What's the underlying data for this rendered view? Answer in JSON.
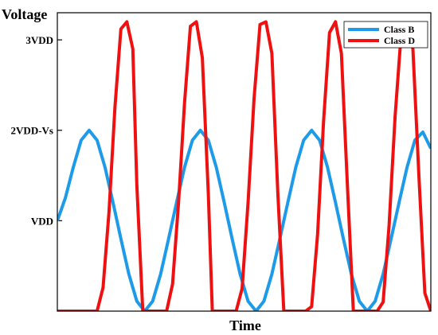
{
  "chart_data": {
    "type": "line",
    "title": "",
    "xlabel": "Time",
    "ylabel": "Voltage",
    "ylim": [
      0,
      3.3
    ],
    "xlim": [
      0,
      9.4
    ],
    "grid": false,
    "legend_position": "top-right",
    "y_ticks": [
      {
        "value": 1,
        "label": "VDD"
      },
      {
        "value": 2,
        "label": "2VDD-Vs"
      },
      {
        "value": 3,
        "label": "3VDD"
      }
    ],
    "series": [
      {
        "name": "Class B",
        "color": "#1e9be8",
        "x": [
          0,
          0.2,
          0.4,
          0.6,
          0.8,
          1,
          1.2,
          1.4,
          1.6,
          1.8,
          2,
          2.2,
          2.4,
          2.6,
          2.8,
          3,
          3.2,
          3.4,
          3.6,
          3.8,
          4,
          4.2,
          4.4,
          4.6,
          4.8,
          5,
          5.2,
          5.4,
          5.6,
          5.8,
          6,
          6.2,
          6.4,
          6.6,
          6.8,
          7,
          7.2,
          7.4,
          7.6,
          7.8,
          8,
          8.2,
          8.4,
          8.6,
          8.8,
          9,
          9.2,
          9.4
        ],
        "values": [
          1,
          1.25,
          1.59,
          1.89,
          2.0,
          1.89,
          1.59,
          1.2,
          0.8,
          0.41,
          0.11,
          0,
          0.11,
          0.41,
          0.8,
          1.2,
          1.59,
          1.89,
          2.0,
          1.89,
          1.59,
          1.2,
          0.8,
          0.41,
          0.11,
          0,
          0.11,
          0.41,
          0.8,
          1.2,
          1.59,
          1.89,
          2.0,
          1.89,
          1.59,
          1.2,
          0.8,
          0.41,
          0.11,
          0,
          0.11,
          0.41,
          0.8,
          1.2,
          1.59,
          1.89,
          1.98,
          1.8
        ]
      },
      {
        "name": "Class D",
        "color": "#ee1111",
        "x": [
          0,
          1,
          1.15,
          1.3,
          1.45,
          1.6,
          1.75,
          1.9,
          2.0,
          2.15,
          2.3,
          2.45,
          2.6,
          2.75,
          2.9,
          3.05,
          3.2,
          3.35,
          3.5,
          3.65,
          3.8,
          3.9,
          4.05,
          4.2,
          4.35,
          4.5,
          4.65,
          4.8,
          4.95,
          5.1,
          5.25,
          5.4,
          5.55,
          5.7,
          5.8,
          5.95,
          6.1,
          6.25,
          6.4,
          6.55,
          6.7,
          6.85,
          7.0,
          7.15,
          7.3,
          7.45,
          7.6,
          7.75,
          7.9,
          8.05,
          8.2,
          8.35,
          8.5,
          8.65,
          8.8,
          8.95,
          9.1,
          9.25,
          9.4
        ],
        "values": [
          0,
          0,
          0.26,
          1.1,
          2.25,
          3.12,
          3.2,
          2.9,
          1.4,
          0,
          0,
          0,
          0,
          0,
          0.3,
          1.2,
          2.3,
          3.15,
          3.2,
          2.8,
          1.3,
          0,
          0,
          0,
          0,
          0,
          0.25,
          1.2,
          2.35,
          3.17,
          3.2,
          2.85,
          1.3,
          0,
          0,
          0,
          0,
          0,
          0.05,
          0.85,
          2.1,
          3.08,
          3.2,
          2.85,
          1.4,
          0,
          0,
          0,
          0,
          0,
          0.1,
          0.95,
          2.15,
          3.05,
          3.17,
          2.9,
          1.5,
          0.2,
          0
        ]
      }
    ]
  }
}
